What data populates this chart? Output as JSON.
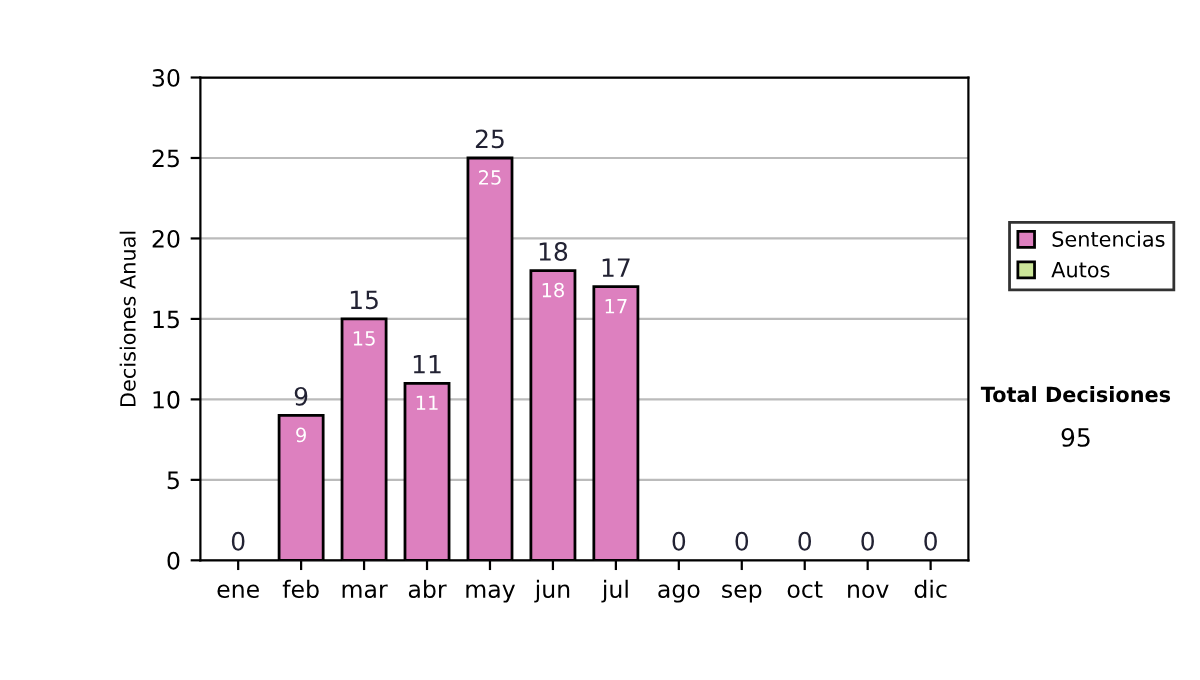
{
  "chart_data": {
    "type": "bar",
    "stacked": true,
    "ylabel": "Decisiones Anual",
    "categories": [
      "ene",
      "feb",
      "mar",
      "abr",
      "may",
      "jun",
      "jul",
      "ago",
      "sep",
      "oct",
      "nov",
      "dic"
    ],
    "series": [
      {
        "name": "Sentencias",
        "color": "#dd80bf",
        "values": [
          0,
          9,
          15,
          11,
          25,
          18,
          17,
          0,
          0,
          0,
          0,
          0
        ],
        "value_labels": [
          null,
          "9",
          "15",
          "11",
          "25",
          "18",
          "17",
          null,
          null,
          null,
          null,
          null
        ]
      },
      {
        "name": "Autos",
        "color": "#cce699",
        "values": [
          0,
          0,
          0,
          0,
          0,
          0,
          0,
          0,
          0,
          0,
          0,
          0
        ]
      }
    ],
    "totals": [
      "0",
      "9",
      "15",
      "11",
      "25",
      "18",
      "17",
      "0",
      "0",
      "0",
      "0",
      "0"
    ],
    "ylim": [
      0,
      30
    ],
    "yticks": [
      0,
      5,
      10,
      15,
      20,
      25,
      30
    ],
    "grid": "y",
    "legend": "right",
    "annotations": [
      "Total Decisiones",
      "95"
    ]
  }
}
